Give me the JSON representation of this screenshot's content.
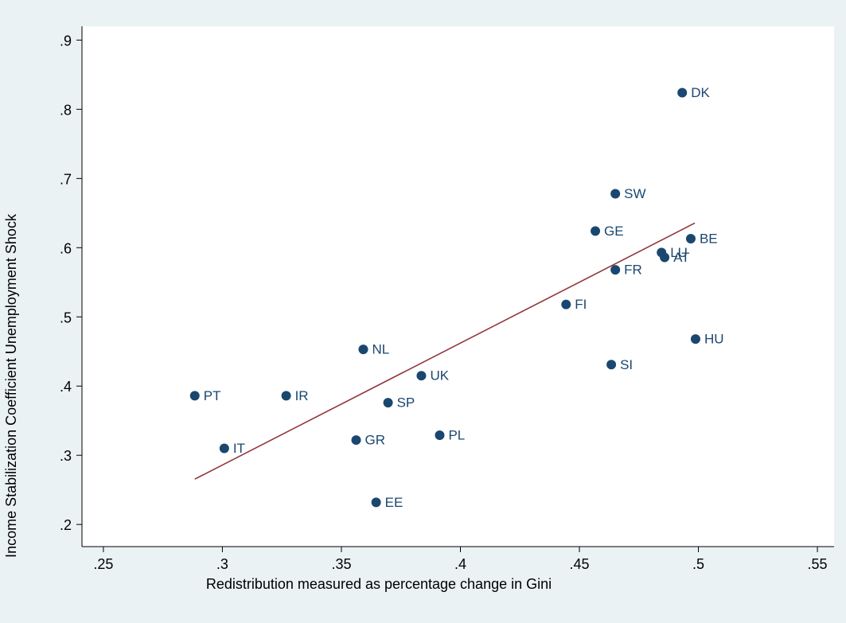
{
  "chart_data": {
    "type": "scatter",
    "x_label": "Redistribution measured as percentage change in Gini",
    "y_label": "Income Stabilization Coefficient Unemployment Shock",
    "points": {
      "color": "#1a476f",
      "labels": [
        "DK",
        "SW",
        "GE",
        "BE",
        "LU",
        "AT",
        "FR",
        "FI",
        "HU",
        "SI",
        "NL",
        "UK",
        "PT",
        "IR",
        "SP",
        "PL",
        "GR",
        "IT",
        "EE"
      ],
      "x": [
        0.4932,
        0.4651,
        0.4567,
        0.4968,
        0.4845,
        0.4858,
        0.4651,
        0.4444,
        0.4988,
        0.4634,
        0.3592,
        0.3836,
        0.2884,
        0.3268,
        0.3696,
        0.3913,
        0.3562,
        0.3008,
        0.3646
      ],
      "y": [
        0.824,
        0.678,
        0.624,
        0.613,
        0.593,
        0.586,
        0.568,
        0.518,
        0.468,
        0.431,
        0.453,
        0.415,
        0.386,
        0.386,
        0.376,
        0.329,
        0.322,
        0.31,
        0.232
      ]
    },
    "fit": {
      "color": "#90353b",
      "x": [
        0.2884,
        0.4985
      ],
      "y": [
        0.2655,
        0.6356
      ]
    },
    "xlim": [
      0.241,
      0.557
    ],
    "ylim": [
      0.168,
      0.92
    ],
    "xticks": [
      {
        "value": 0.25,
        "label": ".25"
      },
      {
        "value": 0.3,
        "label": ".3"
      },
      {
        "value": 0.35,
        "label": ".35"
      },
      {
        "value": 0.4,
        "label": ".4"
      },
      {
        "value": 0.45,
        "label": ".45"
      },
      {
        "value": 0.5,
        "label": ".5"
      },
      {
        "value": 0.55,
        "label": ".55"
      }
    ],
    "yticks": [
      {
        "value": 0.2,
        "label": ".2"
      },
      {
        "value": 0.3,
        "label": ".3"
      },
      {
        "value": 0.4,
        "label": ".4"
      },
      {
        "value": 0.5,
        "label": ".5"
      },
      {
        "value": 0.6,
        "label": ".6"
      },
      {
        "value": 0.7,
        "label": ".7"
      },
      {
        "value": 0.8,
        "label": ".8"
      },
      {
        "value": 0.9,
        "label": ".9"
      }
    ]
  }
}
